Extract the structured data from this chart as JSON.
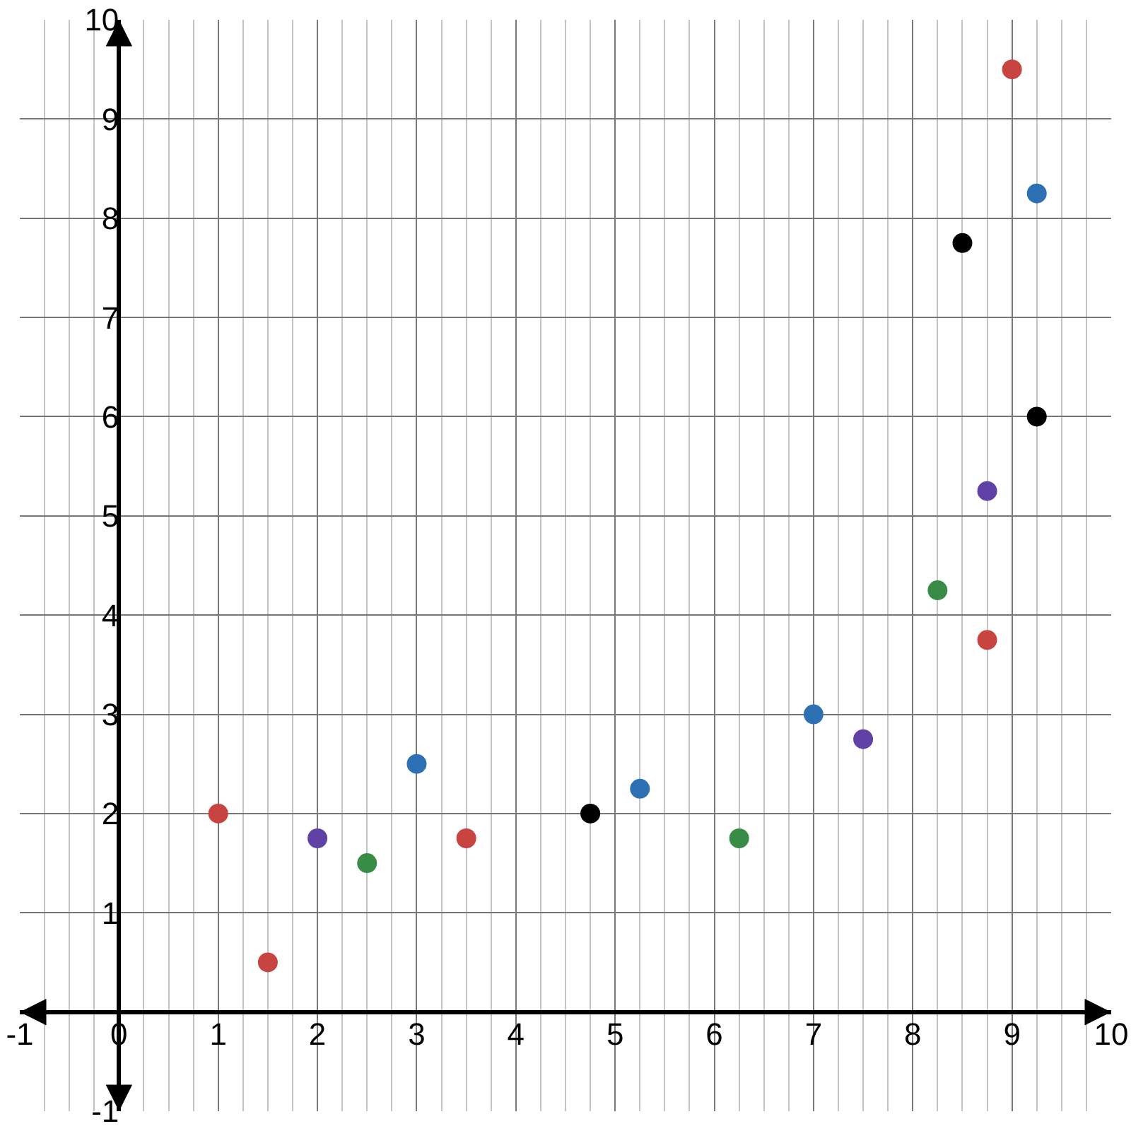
{
  "chart_data": {
    "type": "scatter",
    "marker": "circle",
    "grid": true,
    "xlim": [
      -1,
      10
    ],
    "ylim": [
      -1,
      10
    ],
    "xticks": [
      -1,
      0,
      1,
      2,
      3,
      4,
      5,
      6,
      7,
      8,
      9,
      10
    ],
    "yticks": [
      -1,
      {
        "value": 0,
        "label": null
      },
      1,
      2,
      3,
      4,
      5,
      6,
      7,
      8,
      9,
      10
    ],
    "series": [
      {
        "color": "#c74440",
        "x": [
          1,
          1.5,
          3.5,
          8.75,
          9
        ],
        "values": [
          2,
          0.5,
          1.75,
          3.75,
          9.5
        ]
      },
      {
        "color": "#6042a6",
        "x": [
          2,
          7.5,
          8.75
        ],
        "values": [
          1.75,
          2.75,
          5.25
        ]
      },
      {
        "color": "#388c46",
        "x": [
          2.5,
          6.25,
          8.25
        ],
        "values": [
          1.5,
          1.75,
          4.25
        ]
      },
      {
        "color": "#2d70b3",
        "x": [
          3,
          5.25,
          7,
          9.25
        ],
        "values": [
          2.5,
          2.25,
          3,
          8.25
        ]
      },
      {
        "color": "#000000",
        "x": [
          4.75,
          8.5,
          9.25
        ],
        "values": [
          2,
          7.75,
          6
        ]
      }
    ]
  }
}
